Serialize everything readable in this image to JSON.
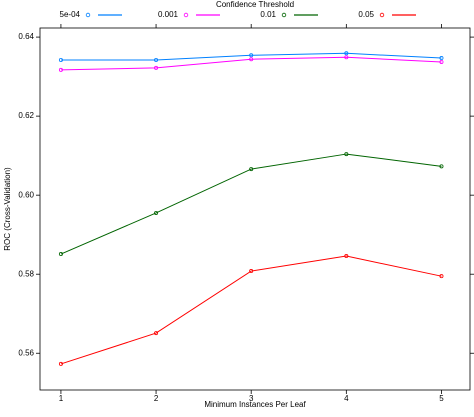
{
  "chart_data": {
    "type": "line",
    "legend_title": "Confidence Threshold",
    "x_label": "Minimum Instances Per Leaf",
    "y_label": "ROC (Cross-Validation)",
    "x": [
      1,
      2,
      3,
      4,
      5
    ],
    "xlim": [
      0.78,
      5.3
    ],
    "xticks": [
      1,
      2,
      3,
      4,
      5
    ],
    "ylim": [
      0.5507,
      0.6423
    ],
    "yticks": [
      {
        "value": 0.56,
        "label": "0.56"
      },
      {
        "value": 0.58,
        "label": "0.58"
      },
      {
        "value": 0.6,
        "label": "0.60"
      },
      {
        "value": 0.62,
        "label": "0.62"
      },
      {
        "value": 0.64,
        "label": "0.64"
      }
    ],
    "series": [
      {
        "name": "5e-04",
        "color": "#0080ff",
        "values": [
          0.6342,
          0.6342,
          0.6354,
          0.6359,
          0.6347
        ]
      },
      {
        "name": "0.001",
        "color": "#ff00ff",
        "values": [
          0.6317,
          0.6322,
          0.6344,
          0.6349,
          0.6337
        ]
      },
      {
        "name": "0.01",
        "color": "#006400",
        "values": [
          0.5851,
          0.5955,
          0.6066,
          0.6104,
          0.6073
        ]
      },
      {
        "name": "0.05",
        "color": "#ff0000",
        "values": [
          0.5573,
          0.5651,
          0.5808,
          0.5846,
          0.5795
        ]
      }
    ]
  }
}
